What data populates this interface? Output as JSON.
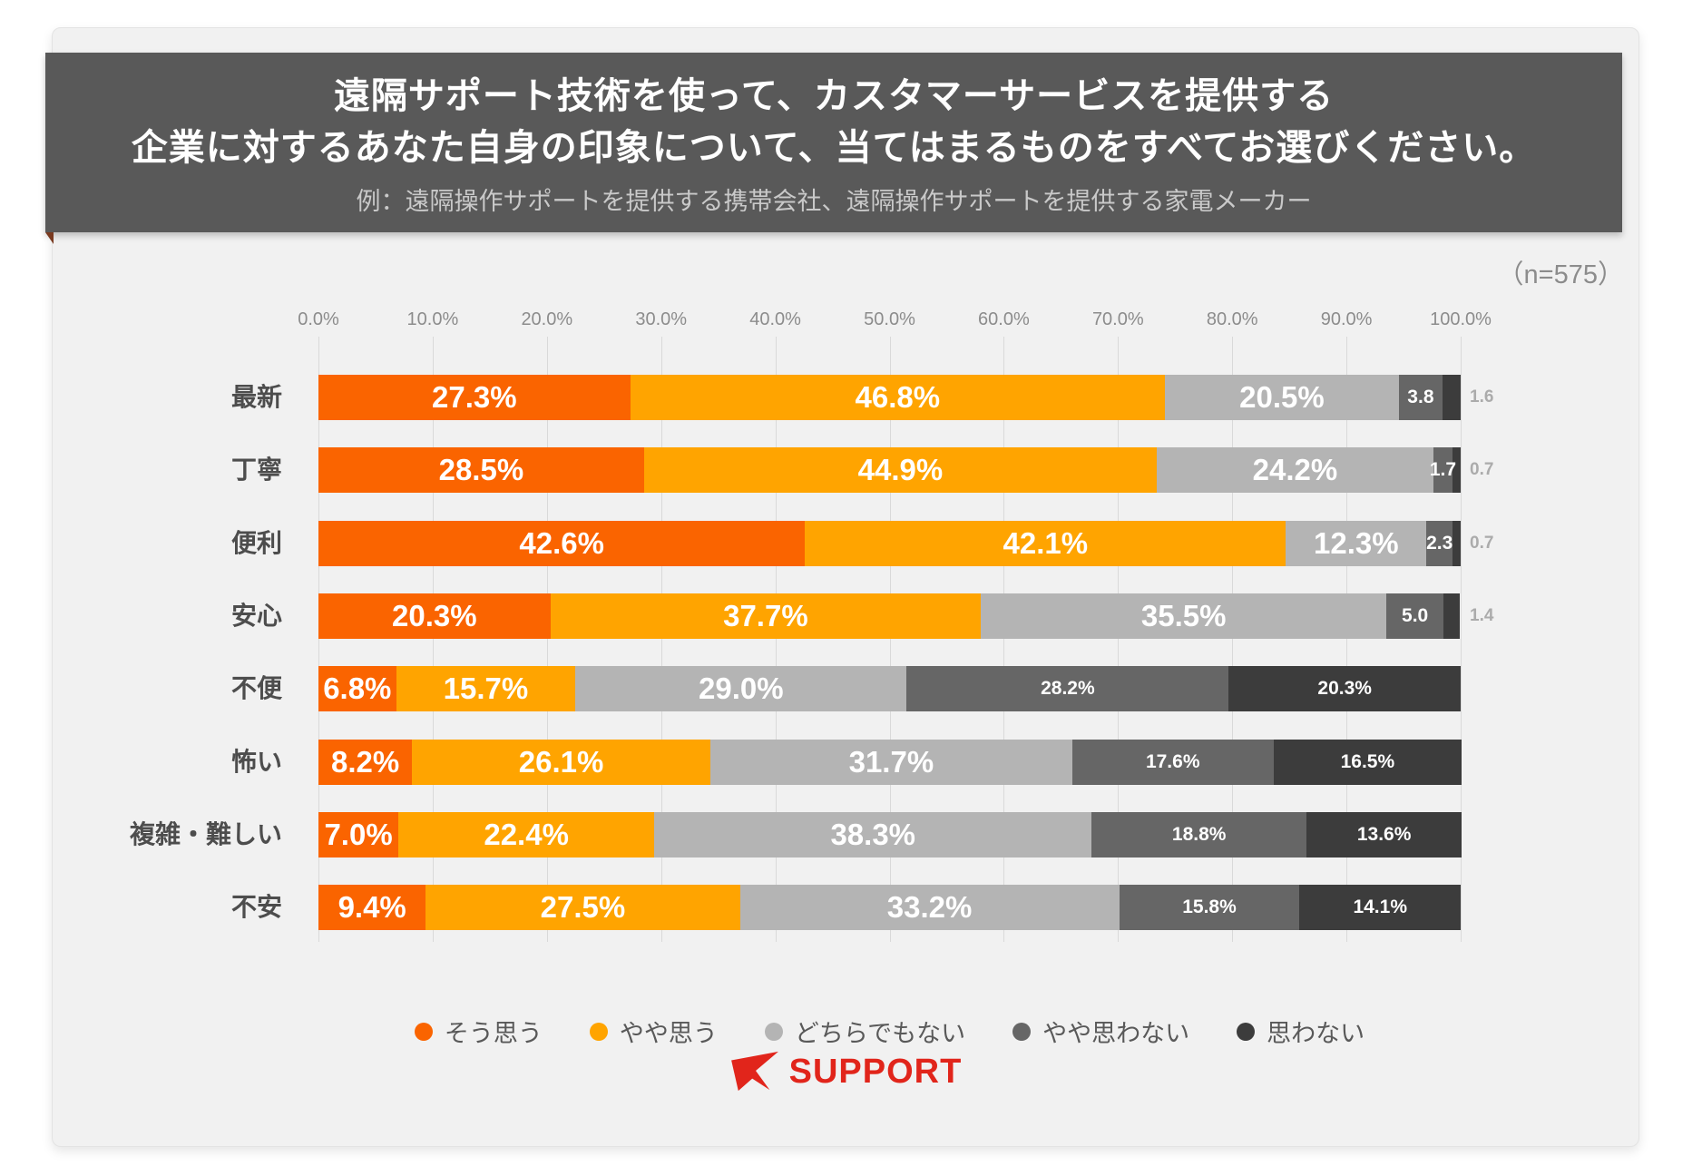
{
  "header": {
    "title_line1": "遠隔サポート技術を使って、カスタマーサービスを提供する",
    "title_line2": "企業に対するあなた自身の印象について、当てはまるものをすべてお選びください。",
    "subtitle": "例：遠隔操作サポートを提供する携帯会社、遠隔操作サポートを提供する家電メーカー"
  },
  "sample_label": "（n=575）",
  "chart_data": {
    "type": "bar",
    "orientation": "horizontal-stacked",
    "unit": "%",
    "grid": true,
    "legend_position": "bottom",
    "xlim": [
      0,
      100
    ],
    "x_ticks": [
      "0.0%",
      "10.0%",
      "20.0%",
      "30.0%",
      "40.0%",
      "50.0%",
      "60.0%",
      "70.0%",
      "80.0%",
      "90.0%",
      "100.0%"
    ],
    "categories": [
      "最新",
      "丁寧",
      "便利",
      "安心",
      "不便",
      "怖い",
      "複雑・難しい",
      "不安"
    ],
    "series": [
      {
        "name": "そう思う",
        "color": "#FA6400",
        "values": [
          27.3,
          28.5,
          42.6,
          20.3,
          6.8,
          8.2,
          7.0,
          9.4
        ]
      },
      {
        "name": "やや思う",
        "color": "#FFA400",
        "values": [
          46.8,
          44.9,
          42.1,
          37.7,
          15.7,
          26.1,
          22.4,
          27.5
        ]
      },
      {
        "name": "どちらでもない",
        "color": "#B4B4B4",
        "values": [
          20.5,
          24.2,
          12.3,
          35.5,
          29.0,
          31.7,
          38.3,
          33.2
        ]
      },
      {
        "name": "やや思わない",
        "color": "#666666",
        "values": [
          3.8,
          1.7,
          2.3,
          5.0,
          28.2,
          17.6,
          18.8,
          15.8
        ]
      },
      {
        "name": "思わない",
        "color": "#3C3C3C",
        "values": [
          1.6,
          0.7,
          0.7,
          1.4,
          20.3,
          16.5,
          13.6,
          14.1
        ]
      }
    ],
    "outside_label_rows": [
      0,
      1,
      2,
      3
    ]
  },
  "colors": {
    "card_bg": "#F1F1F1",
    "banner_bg": "#595959",
    "gridline": "#D9D9D9",
    "category_text": "#4D4D4D",
    "axis_text": "#8C8C8C",
    "outside_label_text": "#ABABAB",
    "logo_red": "#E1251B"
  },
  "footer": {
    "logo_mark": "rsupport-r-arrow",
    "logo_text": "SUPPORT"
  }
}
